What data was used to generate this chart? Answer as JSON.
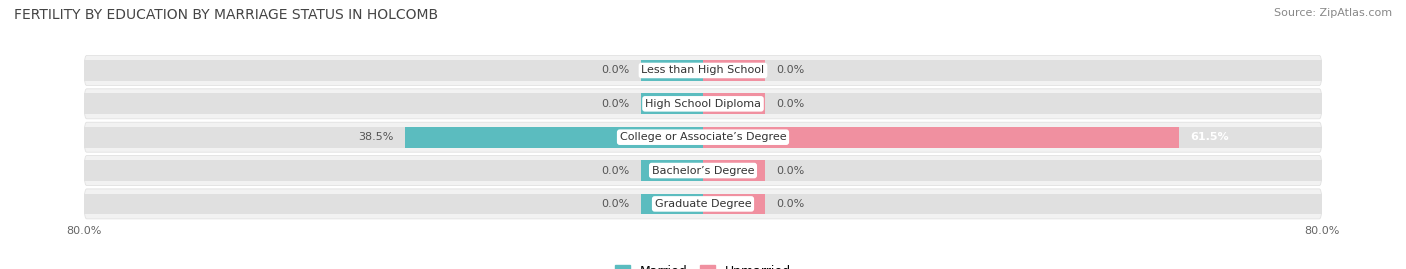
{
  "title": "FERTILITY BY EDUCATION BY MARRIAGE STATUS IN HOLCOMB",
  "source": "Source: ZipAtlas.com",
  "categories": [
    "Less than High School",
    "High School Diploma",
    "College or Associate’s Degree",
    "Bachelor’s Degree",
    "Graduate Degree"
  ],
  "married_values": [
    0.0,
    0.0,
    38.5,
    0.0,
    0.0
  ],
  "unmarried_values": [
    0.0,
    0.0,
    61.5,
    0.0,
    0.0
  ],
  "default_married_bar": 8.0,
  "default_unmarried_bar": 8.0,
  "max_val": 80.0,
  "married_color": "#5bbcbf",
  "unmarried_color": "#f090a0",
  "bar_bg_color": "#e0e0e0",
  "row_bg_color": "#f2f2f2",
  "row_bg_dark": "#e8e8e8",
  "title_fontsize": 10,
  "source_fontsize": 8,
  "label_fontsize": 8,
  "value_fontsize": 8,
  "legend_fontsize": 9,
  "axis_label_fontsize": 8
}
